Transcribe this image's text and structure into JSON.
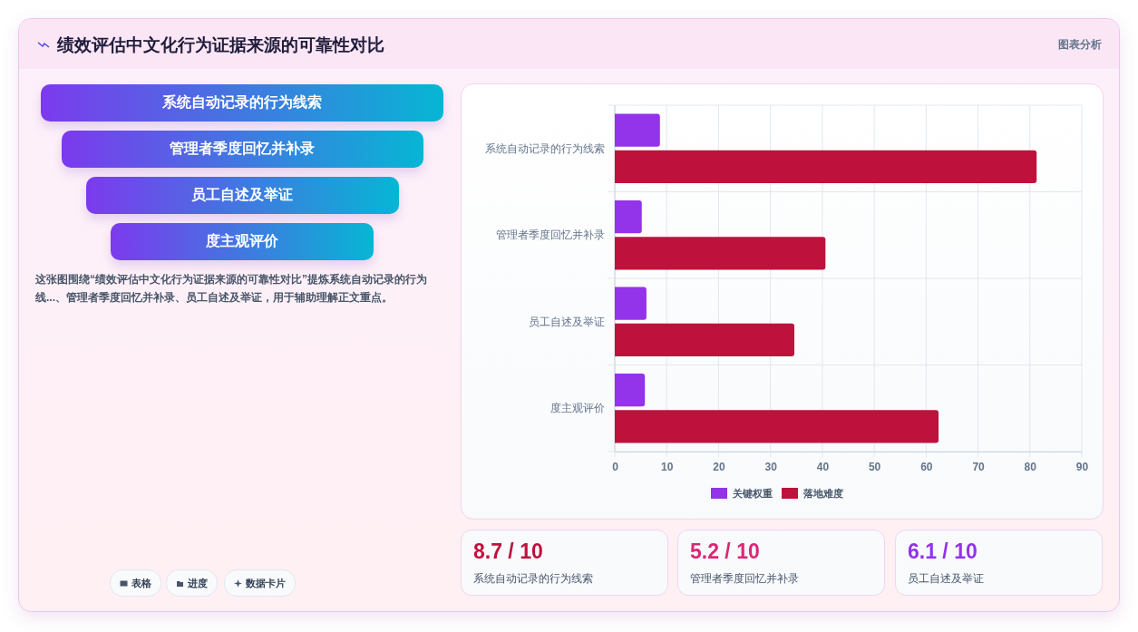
{
  "chart_data": [
    {
      "type": "other",
      "title": "绩效评估中文化行为证据来源的可靠性对比",
      "subtitle": "图表分析",
      "categories": [
        "系统自动记录的行为线索",
        "管理者季度回忆并补录",
        "员工自述及举证",
        "度主观评价"
      ],
      "annotations": [
        "这张图围绕“绩效评估中文化行为证据来源的可靠性对比”提炼系统自动记录的行为线...、管理者季度回忆并补录、员工自述及举证，用于辅助理解正文重点。",
        "表格",
        "进度",
        "数据卡片"
      ]
    },
    {
      "type": "bar",
      "orientation": "horizontal",
      "categories": [
        "系统自动记录的行为线索",
        "管理者季度回忆并补录",
        "员工自述及举证",
        "度主观评价"
      ],
      "series": [
        {
          "name": "关键权重",
          "color": "#9333ea",
          "values": [
            8.7,
            5.2,
            6.1,
            5.8
          ]
        },
        {
          "name": "落地难度",
          "color": "#be123c",
          "values": [
            81.3,
            40.6,
            34.6,
            62.4
          ]
        }
      ],
      "xlim": [
        0,
        90
      ],
      "xticks": [
        0,
        10,
        20,
        30,
        40,
        50,
        60,
        70,
        80,
        90
      ],
      "grid": true,
      "legend": "bottom"
    },
    {
      "type": "other",
      "categories": [
        "系统自动记录的行为线索",
        "管理者季度回忆并补录",
        "员工自述及举证"
      ],
      "annotations": [
        "8.7 / 10",
        "5.2 / 10",
        "6.1 / 10"
      ]
    }
  ]
}
